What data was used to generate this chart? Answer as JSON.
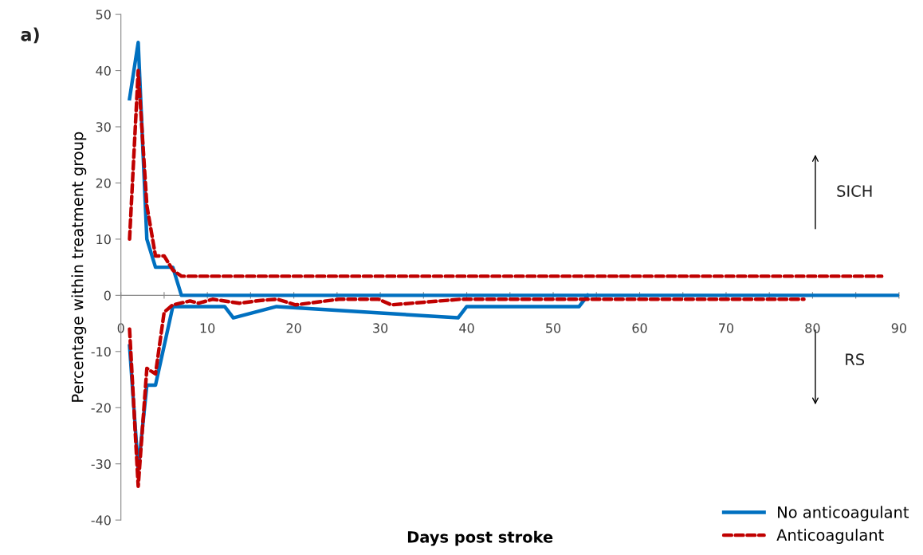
{
  "chart_data": {
    "type": "line",
    "xlabel": "Days post stroke",
    "ylabel": "Percentage within treatment group",
    "xlim": [
      0,
      90
    ],
    "xticks": [
      0,
      {
        "value": 5,
        "label": null
      },
      10,
      {
        "value": 15,
        "label": null
      },
      20,
      {
        "value": 25,
        "label": null
      },
      30,
      {
        "value": 35,
        "label": null
      },
      40,
      {
        "value": 45,
        "label": null
      },
      50,
      {
        "value": 55,
        "label": null
      },
      60,
      {
        "value": 65,
        "label": null
      },
      70,
      {
        "value": 75,
        "label": null
      },
      80,
      {
        "value": 85,
        "label": null
      },
      90
    ],
    "ylim": [
      -40,
      50
    ],
    "yticks": [
      -40,
      -30,
      -20,
      -10,
      0,
      10,
      20,
      30,
      40,
      50
    ],
    "grid": false,
    "legend": "bottom right",
    "marker": "none",
    "series": [
      {
        "name": "No anticoagulant",
        "color": "#0070c0",
        "line_style": "solid",
        "x": [
          1,
          2,
          3,
          4,
          6,
          7,
          90
        ],
        "values": [
          35,
          45,
          10,
          5,
          5,
          0,
          0
        ]
      },
      {
        "name": "Anticoagulant",
        "color": "#c00000",
        "line_style": "dashed",
        "x": [
          1,
          2,
          3,
          4,
          5,
          6,
          7,
          88
        ],
        "values": [
          10,
          40,
          16,
          7,
          7,
          4.5,
          3.4,
          3.4
        ]
      },
      {
        "color": "#0070c0",
        "line_style": "solid",
        "x": [
          1,
          2,
          3,
          4,
          6,
          12,
          13,
          18,
          39,
          40,
          53,
          54
        ],
        "values": [
          -9,
          -31,
          -16,
          -16,
          -2,
          -2,
          -4,
          -2,
          -4,
          -2,
          -2,
          0
        ]
      },
      {
        "color": "#c00000",
        "line_style": "dashed",
        "x": [
          1,
          2,
          3,
          4,
          5,
          6,
          8,
          9,
          10.6,
          13.7,
          16.2,
          18.1,
          20.2,
          25.2,
          29.8,
          31.3,
          39.3,
          79
        ],
        "values": [
          -6,
          -34,
          -13,
          -14,
          -3,
          -1.7,
          -1,
          -1.4,
          -0.7,
          -1.4,
          -0.9,
          -0.7,
          -1.7,
          -0.7,
          -0.7,
          -1.7,
          -0.7,
          -0.7
        ]
      }
    ],
    "annotations": [
      "a)",
      "SICH",
      "RS"
    ]
  }
}
